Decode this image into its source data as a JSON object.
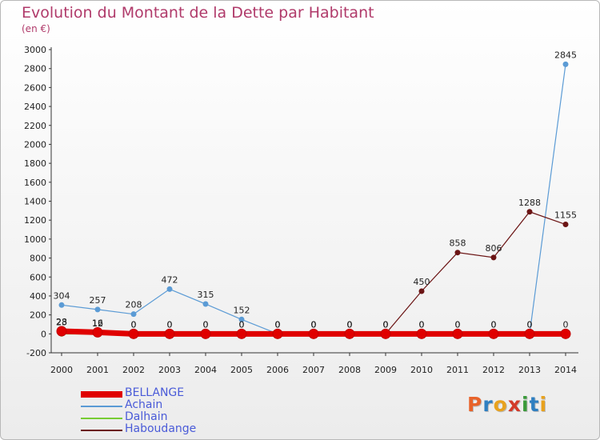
{
  "header": {
    "title": "Evolution du Montant de la Dette par Habitant",
    "subtitle": "(en €)"
  },
  "logo": {
    "text": "Proxiti"
  },
  "chart_data": {
    "type": "line",
    "title": "Evolution du Montant de la Dette par Habitant",
    "subtitle": "(en €)",
    "categories": [
      "2000",
      "2001",
      "2002",
      "2003",
      "2004",
      "2005",
      "2006",
      "2007",
      "2008",
      "2009",
      "2010",
      "2011",
      "2012",
      "2013",
      "2014"
    ],
    "ylim": [
      -200,
      3000
    ],
    "yticks": [
      -200,
      0,
      200,
      400,
      600,
      800,
      1000,
      1200,
      1400,
      1600,
      1800,
      2000,
      2200,
      2400,
      2600,
      2800,
      3000
    ],
    "grid": false,
    "legend_position": "bottom-left",
    "series": [
      {
        "name": "BELLANGE",
        "color": "#e00000",
        "values": [
          28,
          16,
          0,
          0,
          0,
          0,
          0,
          0,
          0,
          0,
          0,
          0,
          0,
          0,
          0
        ],
        "labels": [
          "28",
          "16",
          "0",
          "0",
          "0",
          "0",
          "0",
          "0",
          "0",
          "0",
          "0",
          "0",
          "0",
          "0",
          "0"
        ]
      },
      {
        "name": "Achain",
        "color": "#5b9bd5",
        "values": [
          304,
          257,
          208,
          472,
          315,
          152,
          0,
          0,
          0,
          0,
          0,
          0,
          0,
          0,
          2845
        ],
        "labels": [
          "304",
          "257",
          "208",
          "472",
          "315",
          "152",
          "0",
          "0",
          "0",
          "0",
          "0",
          "0",
          "0",
          "0",
          "2845"
        ]
      },
      {
        "name": "Dalhain",
        "color": "#77cc33",
        "values": [
          0,
          0,
          0,
          0,
          0,
          0,
          0,
          0,
          0,
          0,
          0,
          0,
          0,
          0,
          0
        ],
        "labels": [
          "",
          "",
          "",
          "",
          "",
          "",
          "",
          "",
          "",
          "",
          "",
          "",
          "",
          "",
          ""
        ]
      },
      {
        "name": "Haboudange",
        "color": "#6b1414",
        "values": [
          23,
          12,
          0,
          0,
          0,
          0,
          0,
          0,
          0,
          0,
          450,
          858,
          806,
          1288,
          1155
        ],
        "labels": [
          "23",
          "12",
          "0",
          "0",
          "0",
          "0",
          "0",
          "0",
          "0",
          "0",
          "450",
          "858",
          "806",
          "1288",
          "1155"
        ]
      }
    ]
  }
}
